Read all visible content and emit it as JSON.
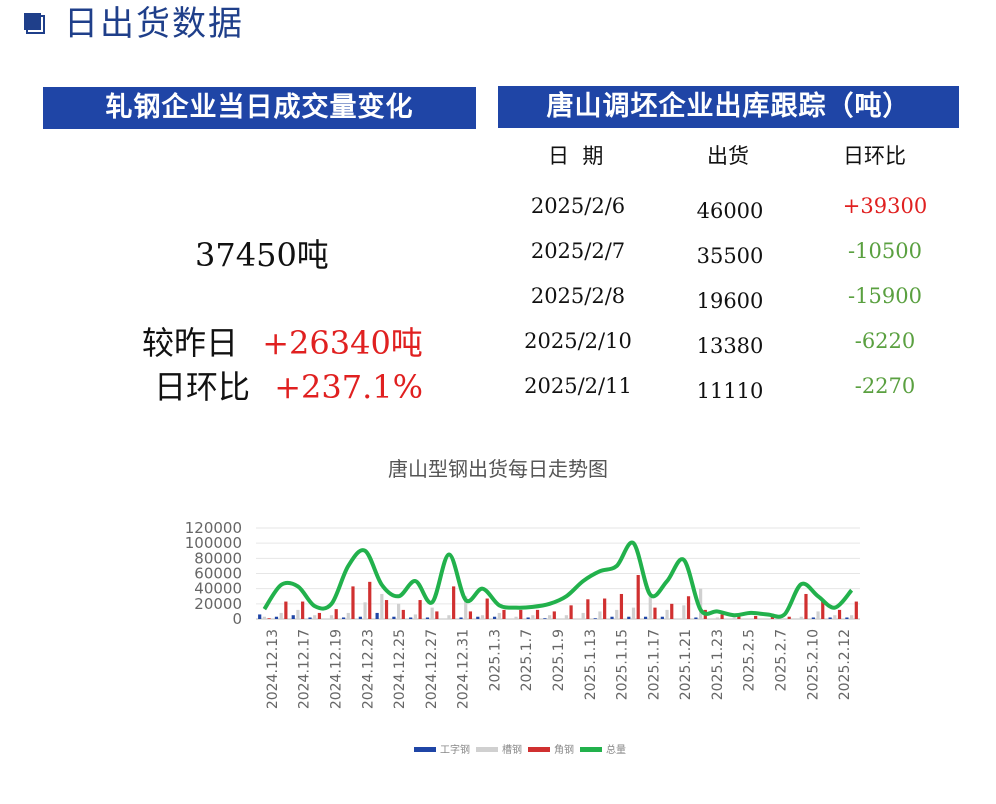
{
  "page_title": "日出货数据",
  "left_panel": {
    "banner": "轧钢企业当日成交量变化",
    "total": "37450吨",
    "vs_yesterday_label": "较昨日",
    "vs_yesterday_value": "+26340吨",
    "dod_label": "日环比",
    "dod_value": "+237.1%"
  },
  "right_panel": {
    "banner": "唐山调坯企业出库跟踪（吨）",
    "headers": [
      "日  期",
      "出货",
      "日环比"
    ],
    "rows": [
      {
        "date": "2025/2/6",
        "ship": "46000",
        "dod": "+39300"
      },
      {
        "date": "2025/2/7",
        "ship": "35500",
        "dod": "-10500"
      },
      {
        "date": "2025/2/8",
        "ship": "19600",
        "dod": "-15900"
      },
      {
        "date": "2025/2/10",
        "ship": "13380",
        "dod": "-6220"
      },
      {
        "date": "2025/2/11",
        "ship": "11110",
        "dod": "-2270"
      }
    ]
  },
  "colors": {
    "banner": "#1f45a6",
    "title": "#1f3f8a",
    "up": "#e02020",
    "down": "#5aa040",
    "series_i_beam": "#1f45a6",
    "series_channel": "#d0d0d0",
    "series_angle": "#d03030",
    "series_total": "#22b14c"
  },
  "chart_data": {
    "type": "bar",
    "title": "唐山型钢出货每日走势图",
    "ylim": [
      0,
      120000
    ],
    "yticks": [
      0,
      20000,
      40000,
      60000,
      80000,
      100000,
      120000
    ],
    "x_tick_labels": [
      "2024.12.13",
      "2024.12.17",
      "2024.12.19",
      "2024.12.23",
      "2024.12.25",
      "2024.12.27",
      "2024.12.31",
      "2025.1.3",
      "2025.1.7",
      "2025.1.9",
      "2025.1.13",
      "2025.1.15",
      "2025.1.17",
      "2025.1.21",
      "2025.1.23",
      "2025.2.5",
      "2025.2.7",
      "2025.2.10",
      "2025.2.12"
    ],
    "n_points": 36,
    "series": [
      {
        "name": "工字钢",
        "type": "bar",
        "values": [
          6000,
          3000,
          5000,
          2000,
          0,
          2000,
          3000,
          8000,
          3000,
          2000,
          2000,
          0,
          2000,
          3000,
          3000,
          0,
          2000,
          1000,
          0,
          0,
          1000,
          3000,
          3000,
          3000,
          3000,
          0,
          2000,
          0,
          0,
          0,
          0,
          0,
          0,
          2000,
          2000,
          2000
        ]
      },
      {
        "name": "槽钢",
        "type": "bar",
        "values": [
          3000,
          8000,
          12000,
          5000,
          5000,
          8000,
          22000,
          33000,
          20000,
          6000,
          15000,
          5000,
          30000,
          5000,
          8000,
          3000,
          5000,
          5000,
          5000,
          8000,
          10000,
          12000,
          15000,
          30000,
          12000,
          18000,
          40000,
          2000,
          2000,
          0,
          0,
          1000,
          3000,
          10000,
          5000,
          5000
        ]
      },
      {
        "name": "角钢",
        "type": "bar",
        "values": [
          1000,
          23000,
          23000,
          8000,
          13000,
          43000,
          49000,
          25000,
          12000,
          25000,
          10000,
          43000,
          10000,
          27000,
          12000,
          12000,
          12000,
          10000,
          18000,
          26000,
          27000,
          33000,
          58000,
          15000,
          20000,
          30000,
          12000,
          6000,
          5000,
          4000,
          3000,
          3000,
          33000,
          26000,
          12000,
          23000
        ]
      },
      {
        "name": "总量",
        "type": "line",
        "values": [
          13000,
          45000,
          43000,
          17000,
          20000,
          70000,
          90000,
          45000,
          30000,
          50000,
          22000,
          85000,
          25000,
          40000,
          18000,
          15000,
          16000,
          20000,
          30000,
          50000,
          63000,
          70000,
          100000,
          32000,
          50000,
          78000,
          12000,
          10000,
          5000,
          8000,
          6000,
          6000,
          46000,
          30000,
          15000,
          38000
        ]
      }
    ],
    "legend_position": "bottom",
    "grid": true
  }
}
